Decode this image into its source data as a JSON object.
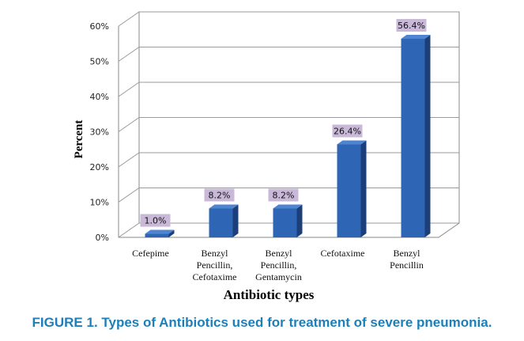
{
  "chart_data": {
    "type": "bar",
    "categories": [
      [
        "Cefepime"
      ],
      [
        "Benzyl",
        "Pencillin,",
        "Cefotaxime"
      ],
      [
        "Benzyl",
        "Pencillin,",
        "Gentamycin"
      ],
      [
        "Cefotaxime"
      ],
      [
        "Benzyl",
        "Pencillin"
      ]
    ],
    "values": [
      1.0,
      8.2,
      8.2,
      26.4,
      56.4
    ],
    "data_labels": [
      "1.0%",
      "8.2%",
      "8.2%",
      "26.4%",
      "56.4%"
    ],
    "yticks": [
      "0%",
      "10%",
      "20%",
      "30%",
      "40%",
      "50%",
      "60%"
    ],
    "ylim": [
      0,
      60
    ],
    "xlabel": "Antibiotic types",
    "ylabel": "Percent",
    "grid": true,
    "colors": {
      "bar": "#2e65b5",
      "bar_side": "#1c3f7a",
      "label_bg": "#c9b8d8"
    }
  },
  "caption": "FIGURE 1. Types of Antibiotics used for treatment of severe pneumonia."
}
